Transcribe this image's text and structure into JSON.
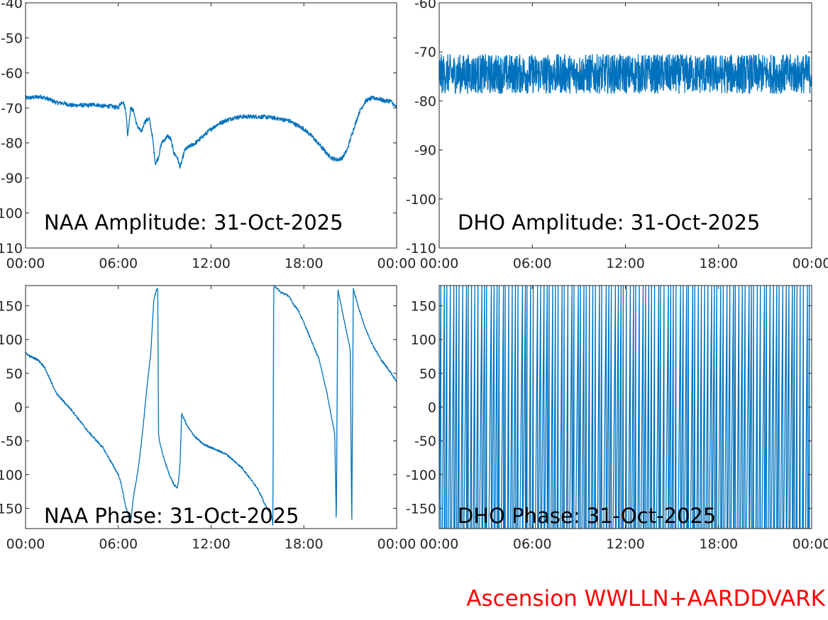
{
  "caption": "Ascension WWLLN+AARDDVARK",
  "colors": {
    "series": "#0072bd",
    "caption": "#ff0000",
    "axes": "#262626"
  },
  "chart_data": [
    {
      "type": "line",
      "title": "NAA Amplitude: 31-Oct-2025",
      "xlabel": "",
      "ylabel": "",
      "xlim": [
        0,
        24
      ],
      "ylim": [
        -110,
        -40
      ],
      "xticks": [
        0,
        6,
        12,
        18,
        24
      ],
      "xtick_labels": [
        "00:00",
        "06:00",
        "12:00",
        "18:00",
        "00:00"
      ],
      "yticks": [
        -110,
        -100,
        -90,
        -80,
        -70,
        -60,
        -50,
        -40
      ],
      "ytick_labels": [
        "-110",
        "-100",
        "-90",
        "-80",
        "-70",
        "-60",
        "-50",
        "-40"
      ],
      "noise": 0.6,
      "series": [
        {
          "x": [
            0,
            0.5,
            1,
            1.5,
            2,
            2.5,
            3,
            3.5,
            4,
            4.5,
            5,
            5.5,
            6,
            6.1,
            6.3,
            6.5,
            6.6,
            6.8,
            7,
            7.2,
            7.5,
            7.7,
            8,
            8.2,
            8.4,
            8.6,
            8.8,
            9,
            9.2,
            9.4,
            9.6,
            9.8,
            10,
            10.3,
            10.6,
            11,
            11.5,
            12,
            12.5,
            13,
            13.5,
            14,
            14.5,
            15,
            15.5,
            16,
            16.5,
            17,
            17.5,
            18,
            18.5,
            19,
            19.3,
            19.6,
            19.9,
            20.2,
            20.5,
            20.8,
            21,
            21.3,
            21.6,
            22,
            22.4,
            22.8,
            23.2,
            23.6,
            24
          ],
          "y": [
            -67.2,
            -67,
            -66.8,
            -67.5,
            -68.5,
            -68.7,
            -69.3,
            -69.2,
            -69.3,
            -69,
            -69.5,
            -69.5,
            -70,
            -69,
            -68,
            -71,
            -78,
            -70,
            -71,
            -75,
            -77,
            -74,
            -73,
            -78,
            -86,
            -84,
            -80,
            -79,
            -78,
            -79,
            -83,
            -84,
            -87,
            -82,
            -81,
            -80,
            -78,
            -76,
            -74.5,
            -73.5,
            -72.8,
            -72.5,
            -72.5,
            -72.5,
            -72.6,
            -72.8,
            -73.2,
            -73.6,
            -74.8,
            -76,
            -78,
            -80.5,
            -82,
            -83.6,
            -84.5,
            -84.8,
            -84.2,
            -82,
            -79,
            -75,
            -71,
            -68,
            -67.2,
            -67.3,
            -68,
            -68,
            -70
          ]
        }
      ]
    },
    {
      "type": "line",
      "title": "DHO Amplitude: 31-Oct-2025",
      "xlabel": "",
      "ylabel": "",
      "xlim": [
        0,
        24
      ],
      "ylim": [
        -110,
        -60
      ],
      "xticks": [
        0,
        6,
        12,
        18,
        24
      ],
      "xtick_labels": [
        "00:00",
        "06:00",
        "12:00",
        "18:00",
        "00:00"
      ],
      "yticks": [
        -110,
        -100,
        -90,
        -80,
        -70,
        -60
      ],
      "ytick_labels": [
        "-110",
        "-100",
        "-90",
        "-80",
        "-70",
        "-60"
      ],
      "band": {
        "center": -74.5,
        "half_width": 4.0
      },
      "series": [
        {
          "x": [
            0,
            24
          ],
          "y": [
            -74.5,
            -74.5
          ]
        }
      ]
    },
    {
      "type": "line",
      "title": "NAA Phase: 31-Oct-2025",
      "xlabel": "",
      "ylabel": "",
      "xlim": [
        0,
        24
      ],
      "ylim": [
        -180,
        180
      ],
      "xticks": [
        0,
        6,
        12,
        18,
        24
      ],
      "xtick_labels": [
        "00:00",
        "06:00",
        "12:00",
        "18:00",
        "00:00"
      ],
      "yticks": [
        -150,
        -100,
        -50,
        0,
        50,
        100,
        150
      ],
      "ytick_labels": [
        "-150",
        "-100",
        "-50",
        "0",
        "50",
        "100",
        "150"
      ],
      "noise": 1.5,
      "series": [
        {
          "x": [
            0,
            0.3,
            0.8,
            1.2,
            1.5,
            2,
            3,
            4,
            5,
            5.5,
            6,
            6.2,
            6.5,
            6.8,
            7.0,
            7.3,
            7.6,
            7.9,
            8.1,
            8.2,
            8.3,
            8.5,
            8.55,
            8.6,
            8.7,
            9,
            9.3,
            9.6,
            9.8,
            9.9,
            10,
            10.1,
            10.3,
            10.5,
            11,
            11.5,
            12,
            13,
            14,
            15,
            15.5,
            15.9,
            16.0,
            16.05,
            16.1,
            16.5,
            17,
            17.4,
            17.6,
            18,
            19,
            19.5,
            20,
            20.1,
            20.2,
            20.5,
            21,
            21.1,
            21.2,
            21.5,
            22,
            22.5,
            23,
            23.5,
            24
          ],
          "y": [
            80,
            75,
            70,
            60,
            45,
            20,
            -5,
            -35,
            -60,
            -80,
            -100,
            -115,
            -150,
            -170,
            -130,
            -90,
            -30,
            40,
            80,
            120,
            160,
            175,
            178,
            -40,
            -55,
            -80,
            -100,
            -115,
            -120,
            -110,
            -80,
            -10,
            -20,
            -30,
            -45,
            -55,
            -60,
            -70,
            -90,
            -120,
            -145,
            -160,
            -175,
            175,
            180,
            170,
            165,
            150,
            145,
            125,
            70,
            20,
            -40,
            -175,
            175,
            140,
            85,
            -175,
            175,
            150,
            115,
            90,
            70,
            55,
            38
          ]
        }
      ]
    },
    {
      "type": "line",
      "title": "DHO Phase: 31-Oct-2025",
      "xlabel": "",
      "ylabel": "",
      "xlim": [
        0,
        24
      ],
      "ylim": [
        -180,
        180
      ],
      "xticks": [
        0,
        6,
        12,
        18,
        24
      ],
      "xtick_labels": [
        "00:00",
        "06:00",
        "12:00",
        "18:00",
        "00:00"
      ],
      "yticks": [
        -150,
        -100,
        -50,
        0,
        50,
        100,
        150
      ],
      "ytick_labels": [
        "-150",
        "-100",
        "-50",
        "0",
        "50",
        "100",
        "150"
      ],
      "wraps_per_hour": 5,
      "series": [
        {
          "x": [
            0,
            24
          ],
          "y": [
            -180,
            180
          ]
        }
      ]
    }
  ]
}
